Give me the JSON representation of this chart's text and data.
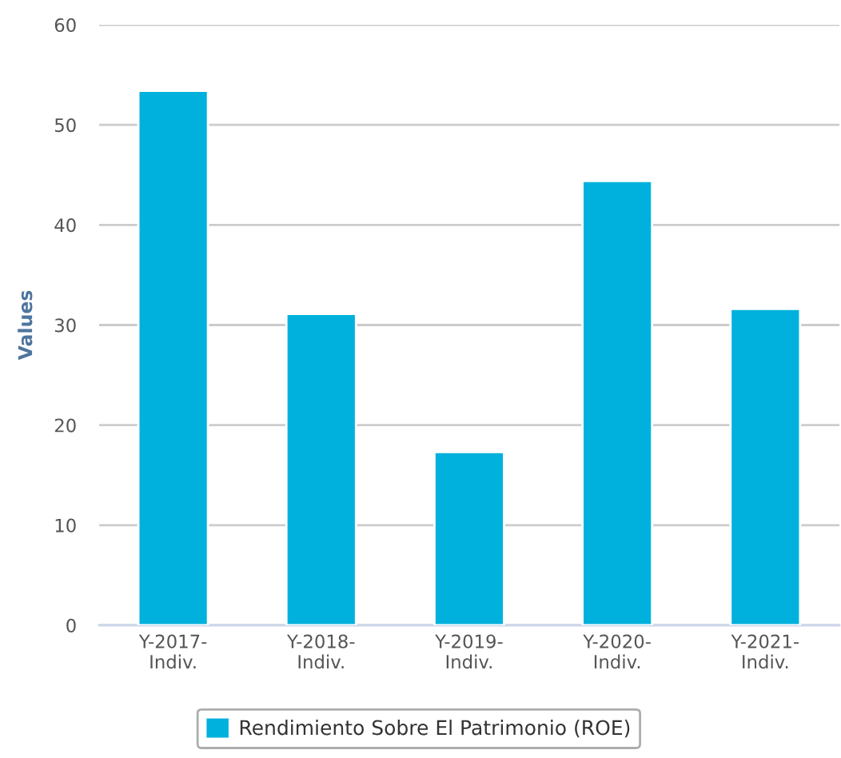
{
  "chart_data": {
    "type": "bar",
    "ylabel": "Values",
    "categories": [
      "Y-2017-\nIndiv.",
      "Y-2018-\nIndiv.",
      "Y-2019-\nIndiv.",
      "Y-2020-\nIndiv.",
      "Y-2021-\nIndiv."
    ],
    "series": [
      {
        "name": "Rendimiento Sobre El Patrimonio (ROE)",
        "color": "#00b1dd",
        "values": [
          53.4,
          31.1,
          17.3,
          44.4,
          31.6
        ]
      }
    ],
    "ylim": [
      0,
      60
    ],
    "yticks": [
      0,
      10,
      20,
      30,
      40,
      50,
      60
    ],
    "grid": "y",
    "legend": "bottom"
  }
}
